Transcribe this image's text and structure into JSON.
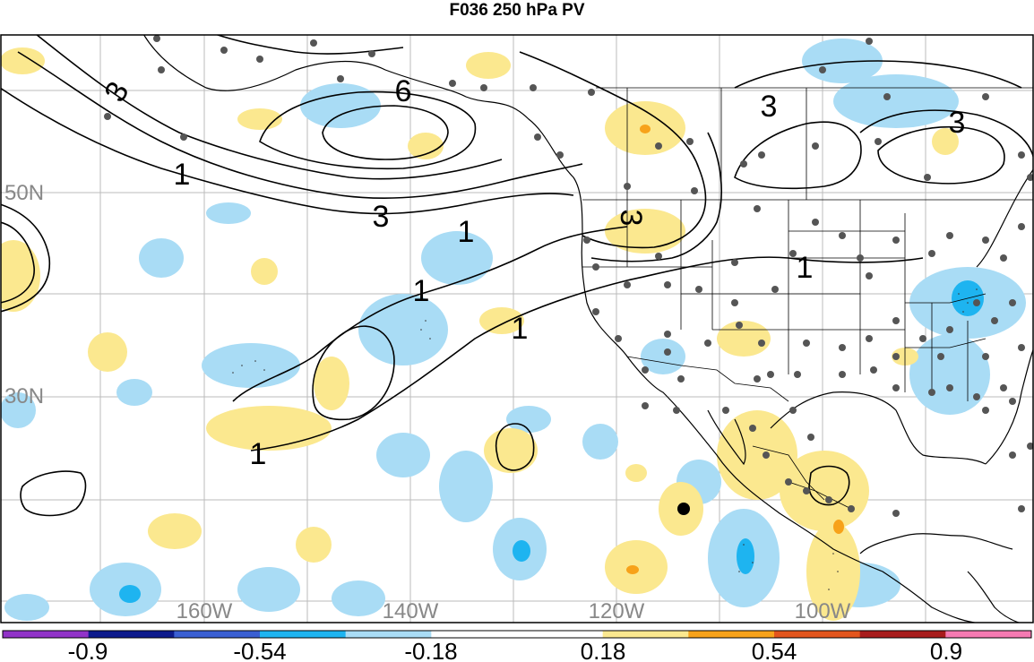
{
  "title": "F036 250 hPa PV",
  "map": {
    "lat_labels": [
      "50N",
      "30N"
    ],
    "lon_labels": [
      "160W",
      "140W",
      "120W",
      "100W"
    ],
    "contour_labels": [
      "3",
      "6",
      "1",
      "3",
      "1",
      "1",
      "1",
      "3",
      "1",
      "3",
      "3"
    ],
    "label_color": "#888888",
    "land_color": "#ffffff",
    "grid_color": "#bbbbbb",
    "contour_color": "#000000",
    "station_color": "#555555"
  },
  "colorbar": {
    "tick_labels": [
      "-0.9",
      "-0.54",
      "-0.18",
      "0.18",
      "0.54",
      "0.9"
    ],
    "colors": [
      "#9133c8",
      "#0d1a8c",
      "#3a5fd2",
      "#1eb4f0",
      "#a9dcf5",
      "#ffffff",
      "#ffffff",
      "#fbe88f",
      "#f7a21a",
      "#e2551d",
      "#a81c1c",
      "#f57ab2"
    ]
  }
}
